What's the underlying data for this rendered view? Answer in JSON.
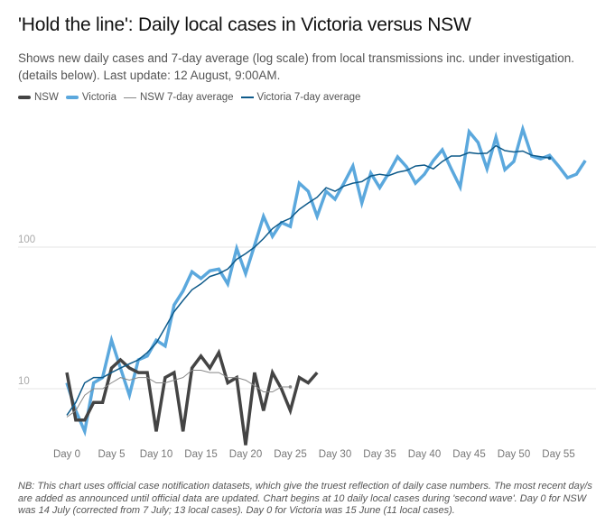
{
  "chart_data": {
    "type": "line",
    "title": "'Hold the line': Daily local cases in Victoria versus NSW",
    "subtitle": "Shows new daily cases and 7-day average (log scale) from local transmissions inc. under investigation. (details below). Last update: 12 August, 9:00AM.",
    "xlabel": "",
    "ylabel": "",
    "yscale": "log",
    "ylim": [
      3.5,
      900
    ],
    "xlim": [
      0,
      58
    ],
    "y_ticks": [
      {
        "value": 10,
        "label": "10"
      },
      {
        "value": 100,
        "label": "100"
      }
    ],
    "x_ticks": [
      {
        "value": 0,
        "label": "Day 0"
      },
      {
        "value": 5,
        "label": "Day 5"
      },
      {
        "value": 10,
        "label": "Day 10"
      },
      {
        "value": 15,
        "label": "Day 15"
      },
      {
        "value": 20,
        "label": "Day 20"
      },
      {
        "value": 25,
        "label": "Day 25"
      },
      {
        "value": 30,
        "label": "Day 30"
      },
      {
        "value": 35,
        "label": "Day 35"
      },
      {
        "value": 40,
        "label": "Day 40"
      },
      {
        "value": 45,
        "label": "Day 45"
      },
      {
        "value": 50,
        "label": "Day 50"
      },
      {
        "value": 55,
        "label": "Day 55"
      }
    ],
    "grid": true,
    "legend_position": "top-left",
    "series": [
      {
        "name": "NSW",
        "color": "#444444",
        "width": 3.5,
        "values": [
          13,
          6,
          6,
          8,
          8,
          14,
          16,
          14,
          13,
          13,
          5,
          12,
          13,
          5,
          14,
          17,
          14,
          18,
          11,
          12,
          4,
          13,
          7,
          13,
          10,
          7,
          12,
          11,
          13
        ]
      },
      {
        "name": "Victoria",
        "color": "#5BA8DD",
        "width": 3.5,
        "values": [
          11,
          7,
          5,
          11,
          12,
          22,
          14,
          9,
          16,
          17,
          22,
          20,
          39,
          49,
          67,
          60,
          68,
          70,
          55,
          98,
          65,
          103,
          165,
          119,
          149,
          140,
          283,
          248,
          165,
          248,
          218,
          283,
          374,
          205,
          333,
          263,
          333,
          434,
          369,
          283,
          327,
          409,
          487,
          357,
          266,
          654,
          548,
          357,
          598,
          352,
          402,
          682,
          440,
          420,
          445,
          374,
          309,
          327,
          409
        ]
      },
      {
        "name": "NSW 7-day average",
        "color": "#888888",
        "width": 1,
        "values": [
          6.3,
          7,
          9,
          10,
          10,
          11,
          12,
          11.5,
          12,
          12,
          11,
          11,
          11.5,
          12,
          13.5,
          13.5,
          13,
          13,
          12,
          12,
          11.5,
          10.5,
          9.5,
          9.5,
          10.3,
          10.3
        ]
      },
      {
        "name": "Victoria 7-day average",
        "color": "#0E5A8A",
        "width": 1.5,
        "values": [
          6.5,
          8,
          11,
          12,
          12,
          13,
          14,
          15,
          16,
          18,
          21,
          27,
          35,
          42,
          50,
          55,
          62,
          65,
          70,
          82,
          90,
          100,
          115,
          135,
          150,
          160,
          185,
          205,
          225,
          263,
          248,
          270,
          283,
          290,
          318,
          327,
          320,
          338,
          348,
          374,
          380,
          357,
          402,
          440,
          440,
          465,
          457,
          460,
          520,
          480,
          470,
          477,
          445,
          435,
          425
        ]
      }
    ],
    "note": "NB: This chart uses official case notification datasets, which give the truest reflection of daily case numbers. The most recent day/s are added as announced until official data are updated. Chart begins at 10 daily local cases during 'second wave'. Day 0 for NSW was 14 July (corrected from 7 July; 13 local cases). Day 0 for Victoria was 15 June (11 local cases)."
  }
}
